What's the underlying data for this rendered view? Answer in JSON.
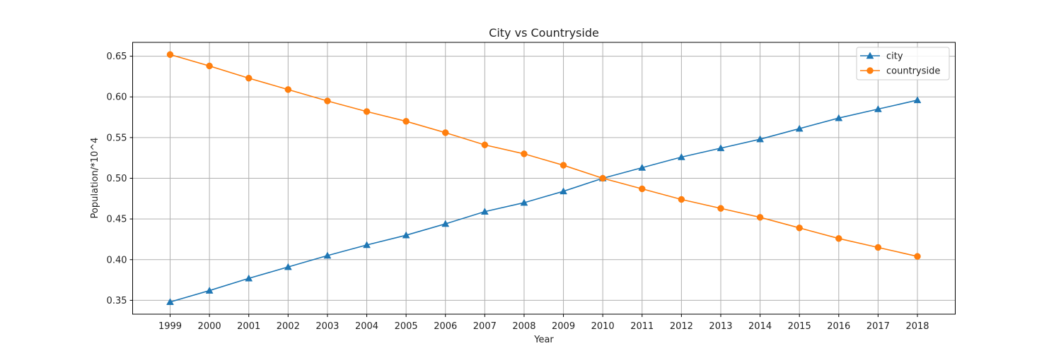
{
  "chart_data": {
    "type": "line",
    "title": "City vs Countryside",
    "xlabel": "Year",
    "ylabel": "Population/*10^4",
    "x": [
      "1999",
      "2000",
      "2001",
      "2002",
      "2003",
      "2004",
      "2005",
      "2006",
      "2007",
      "2008",
      "2009",
      "2010",
      "2011",
      "2012",
      "2013",
      "2014",
      "2015",
      "2016",
      "2017",
      "2018"
    ],
    "ylim": [
      0.333,
      0.667
    ],
    "yticks": [
      "0.35",
      "0.40",
      "0.45",
      "0.50",
      "0.55",
      "0.60",
      "0.65"
    ],
    "grid": true,
    "legend_position": "top-right",
    "series": [
      {
        "name": "city",
        "marker": "triangle",
        "color": "#1f77b4",
        "values": [
          0.348,
          0.362,
          0.377,
          0.391,
          0.405,
          0.418,
          0.43,
          0.444,
          0.459,
          0.47,
          0.484,
          0.5,
          0.513,
          0.526,
          0.537,
          0.548,
          0.561,
          0.574,
          0.585,
          0.596
        ]
      },
      {
        "name": "countryside",
        "marker": "circle",
        "color": "#ff7f0e",
        "values": [
          0.652,
          0.638,
          0.623,
          0.609,
          0.595,
          0.582,
          0.57,
          0.556,
          0.541,
          0.53,
          0.516,
          0.5,
          0.487,
          0.474,
          0.463,
          0.452,
          0.439,
          0.426,
          0.415,
          0.404
        ]
      }
    ]
  }
}
